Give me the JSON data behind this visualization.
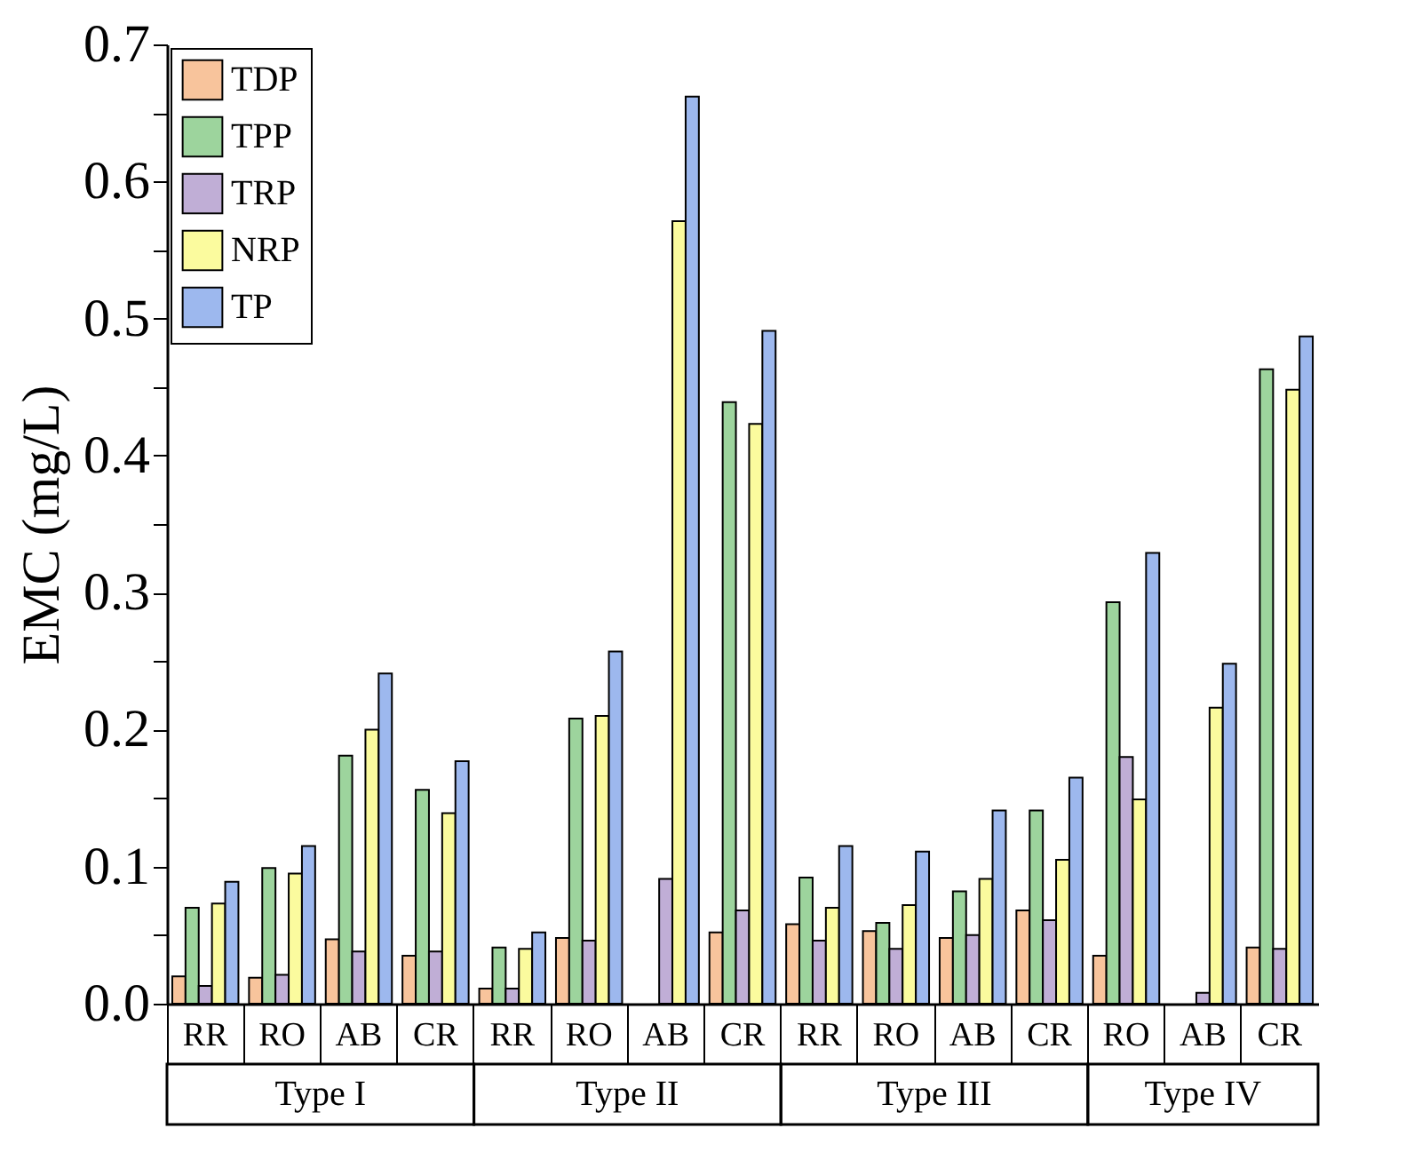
{
  "chart_data": {
    "type": "bar",
    "ylabel": "EMC (mg/L)",
    "categories": [
      "RR",
      "RO",
      "AB",
      "CR",
      "RR",
      "RO",
      "AB",
      "CR",
      "RR",
      "RO",
      "AB",
      "CR",
      "RO",
      "AB",
      "CR"
    ],
    "annotations": [
      "Type I",
      "Type II",
      "Type III",
      "Type IV"
    ],
    "series": [
      {
        "name": "TDP",
        "color": "#f8c49c",
        "values": [
          0.02,
          0.019,
          0.047,
          0.035,
          0.011,
          0.048,
          null,
          0.052,
          0.058,
          0.053,
          0.048,
          0.068,
          0.035,
          null,
          0.041
        ]
      },
      {
        "name": "TPP",
        "color": "#9dd49d",
        "values": [
          0.07,
          0.099,
          0.181,
          0.156,
          0.041,
          0.208,
          null,
          0.439,
          0.092,
          0.059,
          0.082,
          0.141,
          0.293,
          null,
          0.463
        ]
      },
      {
        "name": "TRP",
        "color": "#c0aed6",
        "values": [
          0.013,
          0.021,
          0.038,
          0.038,
          0.011,
          0.046,
          0.091,
          0.068,
          0.046,
          0.04,
          0.05,
          0.061,
          0.18,
          0.008,
          0.04
        ]
      },
      {
        "name": "NRP",
        "color": "#fbfb9e",
        "values": [
          0.073,
          0.095,
          0.2,
          0.139,
          0.04,
          0.21,
          0.571,
          0.423,
          0.07,
          0.072,
          0.091,
          0.105,
          0.149,
          0.216,
          0.448
        ]
      },
      {
        "name": "TP",
        "color": "#9db8ee",
        "values": [
          0.089,
          0.115,
          0.241,
          0.177,
          0.052,
          0.257,
          0.662,
          0.491,
          0.115,
          0.111,
          0.141,
          0.165,
          0.329,
          0.248,
          0.487
        ]
      }
    ],
    "ylim": [
      0,
      0.7
    ],
    "yticks": [
      {
        "value": 0,
        "label": "0.0"
      },
      {
        "value": 0.05,
        "label": null
      },
      0.1,
      {
        "value": 0.15,
        "label": null
      },
      0.2,
      {
        "value": 0.25,
        "label": null
      },
      0.3,
      {
        "value": 0.35,
        "label": null
      },
      0.4,
      {
        "value": 0.45,
        "label": null
      },
      0.5,
      {
        "value": 0.55,
        "label": null
      },
      0.6,
      {
        "value": 0.65,
        "label": null
      },
      0.7
    ],
    "grid": false,
    "legend": "top left"
  }
}
